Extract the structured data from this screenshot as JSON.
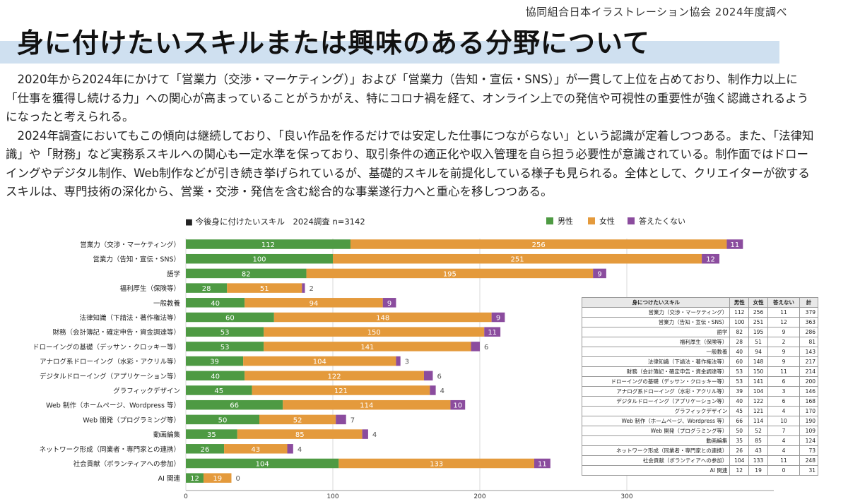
{
  "source": "協同組合日本イラストレーション協会 2024年度調べ",
  "title": "身に付けたいスキルまたは興味のある分野について",
  "paragraphs": [
    "2020年から2024年にかけて「営業力（交渉・マーケティング）」および「営業力（告知・宣伝・SNS）」が一貫して上位を占めており、制作力以上に「仕事を獲得し続ける力」への関心が高まっていることがうかがえ、特にコロナ禍を経て、オンライン上での発信や可視性の重要性が強く認識されるようになったと考えられる。",
    "2024年調査においてもこの傾向は継続しており、「良い作品を作るだけでは安定した仕事につながらない」という認識が定着しつつある。また、「法律知識」や「財務」など実務系スキルへの関心も一定水準を保っており、取引条件の適正化や収入管理を自ら担う必要性が意識されている。制作面ではドローイングやデジタル制作、Web制作などが引き続き挙げられているが、基礎的スキルを前提化している様子も見られる。全体として、クリエイターが欲するスキルは、専門技術の深化から、営業・交渉・発信を含む総合的な事業遂行力へと重心を移しつつある。"
  ],
  "chart_data": {
    "type": "bar",
    "orientation": "horizontal",
    "stacked": true,
    "title": "■ 今後身に付けたいスキル　2024調査 n=3142",
    "categories": [
      "営業力（交渉・マーケティング）",
      "営業力（告知・宣伝・SNS）",
      "語学",
      "福利厚生（保険等）",
      "一般教養",
      "法律知識（下請法・著作権法等）",
      "財務（会計簿記・確定申告・資金調達等）",
      "ドローイングの基礎（デッサン・クロッキー等）",
      "アナログ系ドローイング（水彩・アクリル等）",
      "デジタルドローイング（アプリケーション等）",
      "グラフィックデザイン",
      "Web 制作（ホームページ、Wordpress 等）",
      "Web 開発（プログラミング等）",
      "動画編集",
      "ネットワーク形成（同業者・専門家との連携）",
      "社会貢献（ボランティアへの参加）",
      "AI 関連"
    ],
    "series": [
      {
        "name": "男性",
        "color": "#4e9a43",
        "values": [
          112,
          100,
          82,
          28,
          40,
          60,
          53,
          53,
          39,
          40,
          45,
          66,
          50,
          35,
          26,
          104,
          12
        ]
      },
      {
        "name": "女性",
        "color": "#e49a3c",
        "values": [
          256,
          251,
          195,
          51,
          94,
          148,
          150,
          141,
          104,
          122,
          121,
          114,
          52,
          85,
          43,
          133,
          19
        ]
      },
      {
        "name": "答えたくない",
        "color": "#8b4c9e",
        "values": [
          11,
          12,
          9,
          2,
          9,
          9,
          11,
          6,
          3,
          6,
          4,
          10,
          7,
          4,
          4,
          11,
          0
        ]
      }
    ],
    "xlim": [
      0,
      400
    ],
    "xticks": [
      0,
      100,
      200,
      300
    ],
    "legend_position": "top-right",
    "grid": true
  },
  "table": {
    "headers": [
      "身につけたいスキル",
      "男性",
      "女性",
      "答えない",
      "計"
    ],
    "rows": [
      [
        "営業力（交渉・マーケティング）",
        "112",
        "256",
        "11",
        "379"
      ],
      [
        "営業力（告知・宣伝・SNS）",
        "100",
        "251",
        "12",
        "363"
      ],
      [
        "語学",
        "82",
        "195",
        "9",
        "286"
      ],
      [
        "福利厚生（保険等）",
        "28",
        "51",
        "2",
        "81"
      ],
      [
        "一般教養",
        "40",
        "94",
        "9",
        "143"
      ],
      [
        "法律知識（下請法・著作権法等）",
        "60",
        "148",
        "9",
        "217"
      ],
      [
        "財務（会計簿記・確定申告・資金調達等）",
        "53",
        "150",
        "11",
        "214"
      ],
      [
        "ドローイングの基礎（デッサン・クロッキー等）",
        "53",
        "141",
        "6",
        "200"
      ],
      [
        "アナログ系ドローイング（水彩・アクリル等）",
        "39",
        "104",
        "3",
        "146"
      ],
      [
        "デジタルドローイング（アプリケーション等）",
        "40",
        "122",
        "6",
        "168"
      ],
      [
        "グラフィックデザイン",
        "45",
        "121",
        "4",
        "170"
      ],
      [
        "Web 制作（ホームページ、Wordpress 等）",
        "66",
        "114",
        "10",
        "190"
      ],
      [
        "Web 開発（プログラミング等）",
        "50",
        "52",
        "7",
        "109"
      ],
      [
        "動画編集",
        "35",
        "85",
        "4",
        "124"
      ],
      [
        "ネットワーク形成（同業者・専門家との連携）",
        "26",
        "43",
        "4",
        "73"
      ],
      [
        "社会貢献（ボランティアへの参加）",
        "104",
        "133",
        "11",
        "248"
      ],
      [
        "AI 関連",
        "12",
        "19",
        "0",
        "31"
      ]
    ]
  }
}
